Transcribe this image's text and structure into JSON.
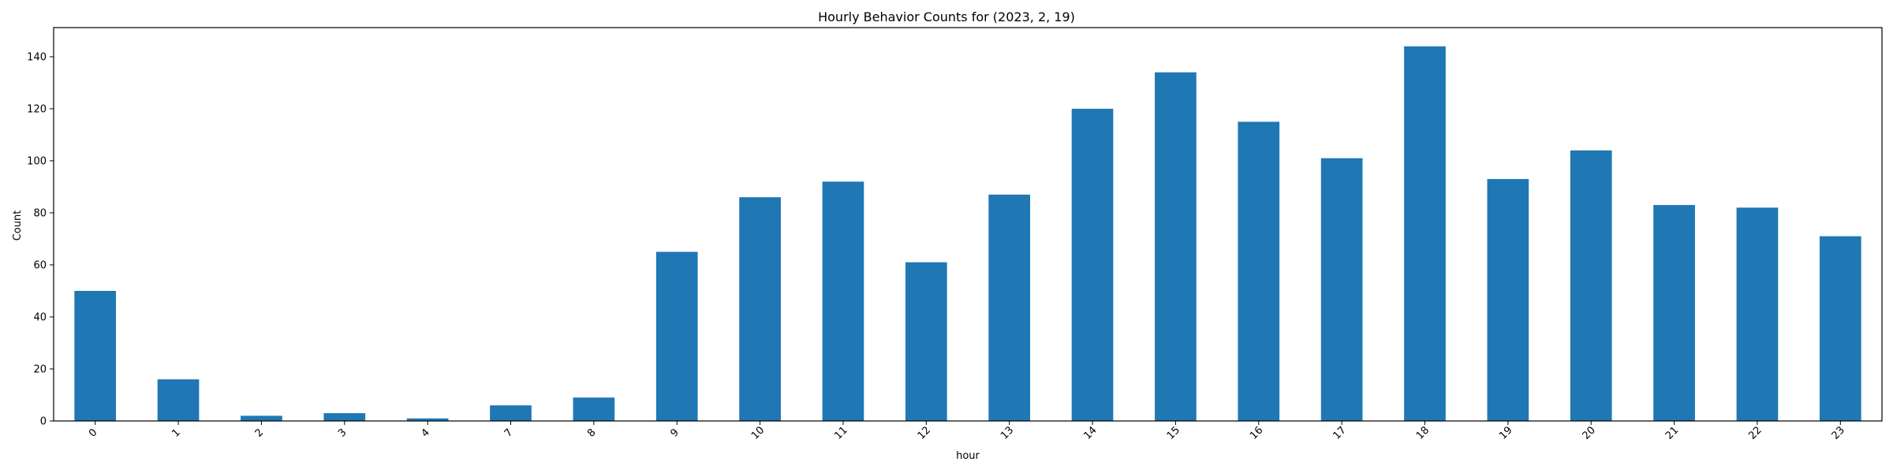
{
  "chart_data": {
    "type": "bar",
    "title": "Hourly Behavior Counts for (2023, 2, 19)",
    "xlabel": "hour",
    "ylabel": "Count",
    "categories": [
      "0",
      "1",
      "2",
      "3",
      "4",
      "7",
      "8",
      "9",
      "10",
      "11",
      "12",
      "13",
      "14",
      "15",
      "16",
      "17",
      "18",
      "19",
      "20",
      "21",
      "22",
      "23"
    ],
    "values": [
      50,
      16,
      2,
      3,
      1,
      6,
      9,
      65,
      86,
      92,
      61,
      87,
      120,
      134,
      115,
      101,
      144,
      93,
      104,
      83,
      82,
      71
    ],
    "yticks": [
      "0",
      "20",
      "40",
      "60",
      "80",
      "100",
      "120",
      "140"
    ],
    "ylim": [
      0,
      151.2
    ],
    "grid": false,
    "bar_color": "#1f77b4"
  }
}
